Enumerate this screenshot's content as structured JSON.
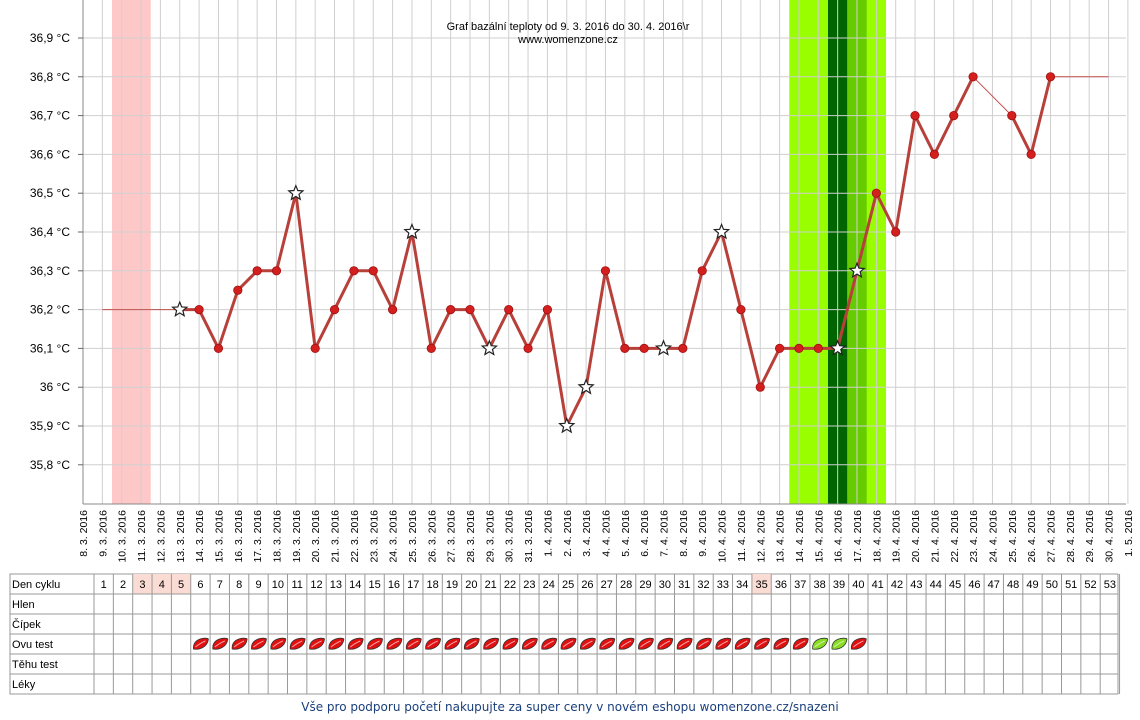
{
  "chart_data": {
    "type": "line",
    "title": "Graf bazální teploty od 9. 3. 2016 do 30. 4. 2016\\r",
    "subtitle": "www.womenzone.cz",
    "xlabel": "",
    "ylabel": "",
    "y_ticks": [
      "35,8 °C",
      "35,9 °C",
      "36 °C",
      "36,1 °C",
      "36,2 °C",
      "36,3 °C",
      "36,4 °C",
      "36,5 °C",
      "36,6 °C",
      "36,7 °C",
      "36,8 °C",
      "36,9 °C"
    ],
    "y_tick_values": [
      35.8,
      35.9,
      36.0,
      36.1,
      36.2,
      36.3,
      36.4,
      36.5,
      36.6,
      36.7,
      36.8,
      36.9
    ],
    "ylim": [
      35.7,
      37.0
    ],
    "dates": [
      "8. 3. 2016",
      "9. 3. 2016",
      "10. 3. 2016",
      "11. 3. 2016",
      "12. 3. 2016",
      "13. 3. 2016",
      "14. 3. 2016",
      "15. 3. 2016",
      "16. 3. 2016",
      "17. 3. 2016",
      "18. 3. 2016",
      "19. 3. 2016",
      "20. 3. 2016",
      "21. 3. 2016",
      "22. 3. 2016",
      "23. 3. 2016",
      "24. 3. 2016",
      "25. 3. 2016",
      "26. 3. 2016",
      "27. 3. 2016",
      "28. 3. 2016",
      "29. 3. 2016",
      "30. 3. 2016",
      "31. 3. 2016",
      "1. 4. 2016",
      "2. 4. 2016",
      "3. 4. 2016",
      "4. 4. 2016",
      "5. 4. 2016",
      "6. 4. 2016",
      "7. 4. 2016",
      "8. 4. 2016",
      "9. 4. 2016",
      "10. 4. 2016",
      "11. 4. 2016",
      "12. 4. 2016",
      "13. 4. 2016",
      "14. 4. 2016",
      "15. 4. 2016",
      "16. 4. 2016",
      "17. 4. 2016",
      "18. 4. 2016",
      "19. 4. 2016",
      "20. 4. 2016",
      "21. 4. 2016",
      "22. 4. 2016",
      "23. 4. 2016",
      "24. 4. 2016",
      "25. 4. 2016",
      "26. 4. 2016",
      "27. 4. 2016",
      "28. 4. 2016",
      "29. 4. 2016",
      "30. 4. 2016",
      "1. 5. 2016"
    ],
    "series": [
      {
        "color": "#b8403a",
        "points": [
          {
            "date": "13. 3. 2016",
            "value": 36.2,
            "marker": "star"
          },
          {
            "date": "14. 3. 2016",
            "value": 36.2,
            "marker": "dot"
          },
          {
            "date": "15. 3. 2016",
            "value": 36.1,
            "marker": "dot"
          },
          {
            "date": "16. 3. 2016",
            "value": 36.25,
            "marker": "dot"
          },
          {
            "date": "17. 3. 2016",
            "value": 36.3,
            "marker": "dot"
          },
          {
            "date": "18. 3. 2016",
            "value": 36.3,
            "marker": "dot"
          },
          {
            "date": "19. 3. 2016",
            "value": 36.5,
            "marker": "star"
          },
          {
            "date": "20. 3. 2016",
            "value": 36.1,
            "marker": "dot"
          },
          {
            "date": "21. 3. 2016",
            "value": 36.2,
            "marker": "dot"
          },
          {
            "date": "22. 3. 2016",
            "value": 36.3,
            "marker": "dot"
          },
          {
            "date": "23. 3. 2016",
            "value": 36.3,
            "marker": "dot"
          },
          {
            "date": "24. 3. 2016",
            "value": 36.2,
            "marker": "dot"
          },
          {
            "date": "25. 3. 2016",
            "value": 36.4,
            "marker": "star"
          },
          {
            "date": "26. 3. 2016",
            "value": 36.1,
            "marker": "dot"
          },
          {
            "date": "27. 3. 2016",
            "value": 36.2,
            "marker": "dot"
          },
          {
            "date": "28. 3. 2016",
            "value": 36.2,
            "marker": "dot"
          },
          {
            "date": "29. 3. 2016",
            "value": 36.1,
            "marker": "star"
          },
          {
            "date": "30. 3. 2016",
            "value": 36.2,
            "marker": "dot"
          },
          {
            "date": "31. 3. 2016",
            "value": 36.1,
            "marker": "dot"
          },
          {
            "date": "1. 4. 2016",
            "value": 36.2,
            "marker": "dot"
          },
          {
            "date": "2. 4. 2016",
            "value": 35.9,
            "marker": "star"
          },
          {
            "date": "3. 4. 2016",
            "value": 36.0,
            "marker": "star"
          },
          {
            "date": "4. 4. 2016",
            "value": 36.3,
            "marker": "dot"
          },
          {
            "date": "5. 4. 2016",
            "value": 36.1,
            "marker": "dot"
          },
          {
            "date": "6. 4. 2016",
            "value": 36.1,
            "marker": "dot"
          },
          {
            "date": "7. 4. 2016",
            "value": 36.1,
            "marker": "star"
          },
          {
            "date": "8. 4. 2016",
            "value": 36.1,
            "marker": "dot"
          },
          {
            "date": "9. 4. 2016",
            "value": 36.3,
            "marker": "dot"
          },
          {
            "date": "10. 4. 2016",
            "value": 36.4,
            "marker": "star"
          },
          {
            "date": "11. 4. 2016",
            "value": 36.2,
            "marker": "dot"
          },
          {
            "date": "12. 4. 2016",
            "value": 36.0,
            "marker": "dot"
          },
          {
            "date": "13. 4. 2016",
            "value": 36.1,
            "marker": "dot"
          },
          {
            "date": "14. 4. 2016",
            "value": 36.1,
            "marker": "dot"
          },
          {
            "date": "15. 4. 2016",
            "value": 36.1,
            "marker": "dot"
          },
          {
            "date": "16. 4. 2016",
            "value": 36.1,
            "marker": "star"
          },
          {
            "date": "17. 4. 2016",
            "value": 36.3,
            "marker": "star"
          },
          {
            "date": "18. 4. 2016",
            "value": 36.5,
            "marker": "dot"
          },
          {
            "date": "19. 4. 2016",
            "value": 36.4,
            "marker": "dot"
          },
          {
            "date": "20. 4. 2016",
            "value": 36.7,
            "marker": "dot"
          },
          {
            "date": "21. 4. 2016",
            "value": 36.6,
            "marker": "dot"
          },
          {
            "date": "22. 4. 2016",
            "value": 36.7,
            "marker": "dot"
          },
          {
            "date": "23. 4. 2016",
            "value": 36.8,
            "marker": "dot"
          },
          {
            "date": "25. 4. 2016",
            "value": 36.7,
            "marker": "dot"
          },
          {
            "date": "26. 4. 2016",
            "value": 36.6,
            "marker": "dot"
          },
          {
            "date": "27. 4. 2016",
            "value": 36.8,
            "marker": "dot"
          }
        ]
      }
    ],
    "connectors": [
      {
        "from_date": "9. 3. 2016",
        "to_date": "13. 3. 2016",
        "value": 36.2
      },
      {
        "from_date": "23. 4. 2016",
        "to_date": "25. 4. 2016",
        "from_value": 36.8,
        "to_value": 36.7
      },
      {
        "from_date": "27. 4. 2016",
        "to_date": "30. 4. 2016",
        "value": 36.8
      }
    ],
    "bands": [
      {
        "from_date": "9. 3. 2016",
        "to_date": "11. 3. 2016",
        "color": "#ffc8c8",
        "meaning": "menstruation"
      },
      {
        "from_date": "13. 4. 2016",
        "to_date": "18. 4. 2016",
        "color": "#99ff00",
        "meaning": "fertile"
      },
      {
        "from_date": "15. 4. 2016",
        "to_date": "16. 4. 2016",
        "color": "#006400",
        "meaning": "ovulation"
      },
      {
        "from_date": "16. 4. 2016",
        "to_date": "17. 4. 2016",
        "color": "#66cc00",
        "meaning": "fertile-mid"
      }
    ],
    "grid": true
  },
  "table": {
    "rows": [
      "Den cyklu",
      "Hlen",
      "Čípek",
      "Ovu test",
      "Těhu test",
      "Léky"
    ],
    "days": [
      "1",
      "2",
      "3",
      "4",
      "5",
      "6",
      "7",
      "8",
      "9",
      "10",
      "11",
      "12",
      "13",
      "14",
      "15",
      "16",
      "17",
      "18",
      "19",
      "20",
      "21",
      "22",
      "23",
      "24",
      "25",
      "26",
      "27",
      "28",
      "29",
      "30",
      "31",
      "32",
      "33",
      "34",
      "35",
      "36",
      "37",
      "38",
      "39",
      "40",
      "41",
      "42",
      "43",
      "44",
      "45",
      "46",
      "47",
      "48",
      "49",
      "50",
      "51",
      "52",
      "53"
    ],
    "highlighted_days": [
      "3",
      "4",
      "5",
      "35"
    ],
    "highlight_color": "#fadcd4",
    "ovu_test": {
      "negative_days": [
        "6",
        "7",
        "8",
        "9",
        "10",
        "11",
        "12",
        "13",
        "14",
        "15",
        "16",
        "17",
        "18",
        "19",
        "20",
        "21",
        "22",
        "23",
        "24",
        "25",
        "26",
        "27",
        "28",
        "29",
        "30",
        "31",
        "32",
        "33",
        "34",
        "35",
        "36",
        "37",
        "40"
      ],
      "positive_days": [
        "38",
        "39"
      ],
      "negative_color": "#e01010",
      "positive_color": "#88dd22"
    }
  },
  "footer": {
    "text": "Vše pro podporu početí nakupujte za super ceny v novém eshopu womenzone.cz/snazeni"
  }
}
